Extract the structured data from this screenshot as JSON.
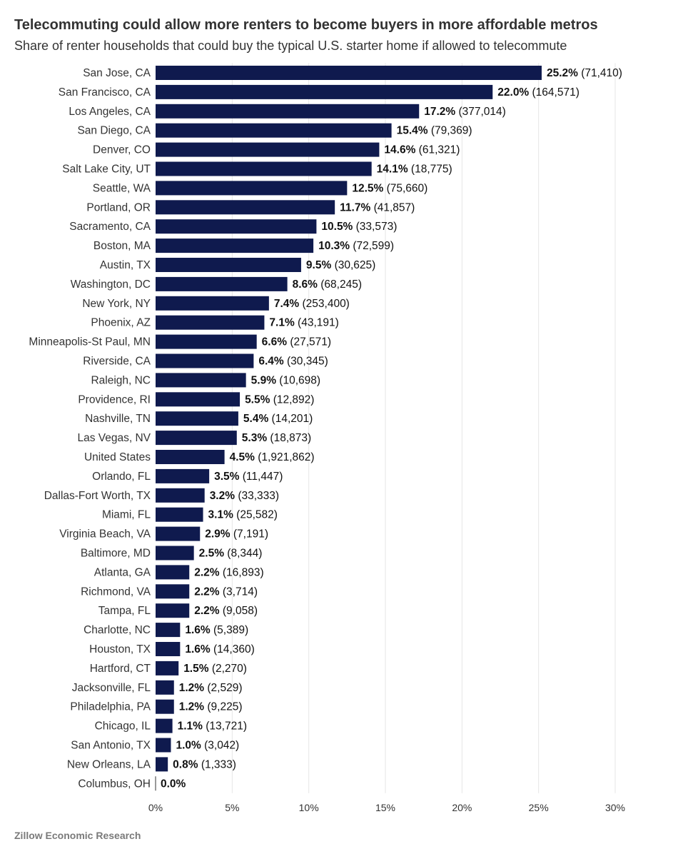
{
  "title": "Telecommuting could allow more renters to become buyers in more affordable metros",
  "subtitle": "Share of renter households that could buy the typical U.S. starter home if allowed to telecommute",
  "source": "Zillow Economic Research",
  "colors": {
    "bar": "#0f1a4e",
    "grid": "#e6e6e6",
    "text": "#333333",
    "source": "#7a7a7a"
  },
  "chart_data": {
    "type": "bar",
    "orientation": "horizontal",
    "title": "Telecommuting could allow more renters to become buyers in more affordable metros",
    "subtitle": "Share of renter households that could buy the typical U.S. starter home if allowed to telecommute",
    "xlabel": "",
    "ylabel": "",
    "xlim": [
      0,
      30
    ],
    "x_ticks": [
      "0%",
      "5%",
      "10%",
      "15%",
      "20%",
      "25%",
      "30%"
    ],
    "grid": true,
    "legend": "none",
    "categories": [
      "San Jose, CA",
      "San Francisco, CA",
      "Los Angeles, CA",
      "San Diego, CA",
      "Denver, CO",
      "Salt Lake City, UT",
      "Seattle, WA",
      "Portland, OR",
      "Sacramento, CA",
      "Boston, MA",
      "Austin, TX",
      "Washington, DC",
      "New York, NY",
      "Phoenix, AZ",
      "Minneapolis-St Paul, MN",
      "Riverside, CA",
      "Raleigh, NC",
      "Providence, RI",
      "Nashville, TN",
      "Las Vegas, NV",
      "United States",
      "Orlando, FL",
      "Dallas-Fort Worth, TX",
      "Miami, FL",
      "Virginia Beach, VA",
      "Baltimore, MD",
      "Atlanta, GA",
      "Richmond, VA",
      "Tampa, FL",
      "Charlotte, NC",
      "Houston, TX",
      "Hartford, CT",
      "Jacksonville, FL",
      "Philadelphia, PA",
      "Chicago, IL",
      "San Antonio, TX",
      "New Orleans, LA",
      "Columbus, OH"
    ],
    "values": [
      25.2,
      22.0,
      17.2,
      15.4,
      14.6,
      14.1,
      12.5,
      11.7,
      10.5,
      10.3,
      9.5,
      8.6,
      7.4,
      7.1,
      6.6,
      6.4,
      5.9,
      5.5,
      5.4,
      5.3,
      4.5,
      3.5,
      3.2,
      3.1,
      2.9,
      2.5,
      2.2,
      2.2,
      2.2,
      1.6,
      1.6,
      1.5,
      1.2,
      1.2,
      1.1,
      1.0,
      0.8,
      0.0
    ],
    "value_labels": [
      "25.2%",
      "22.0%",
      "17.2%",
      "15.4%",
      "14.6%",
      "14.1%",
      "12.5%",
      "11.7%",
      "10.5%",
      "10.3%",
      "9.5%",
      "8.6%",
      "7.4%",
      "7.1%",
      "6.6%",
      "6.4%",
      "5.9%",
      "5.5%",
      "5.4%",
      "5.3%",
      "4.5%",
      "3.5%",
      "3.2%",
      "3.1%",
      "2.9%",
      "2.5%",
      "2.2%",
      "2.2%",
      "2.2%",
      "1.6%",
      "1.6%",
      "1.5%",
      "1.2%",
      "1.2%",
      "1.1%",
      "1.0%",
      "0.8%",
      "0.0%"
    ],
    "counts": [
      "(71,410)",
      "(164,571)",
      "(377,014)",
      "(79,369)",
      "(61,321)",
      "(18,775)",
      "(75,660)",
      "(41,857)",
      "(33,573)",
      "(72,599)",
      "(30,625)",
      "(68,245)",
      "(253,400)",
      "(43,191)",
      "(27,571)",
      "(30,345)",
      "(10,698)",
      "(12,892)",
      "(14,201)",
      "(18,873)",
      "(1,921,862)",
      "(11,447)",
      "(33,333)",
      "(25,582)",
      "(7,191)",
      "(8,344)",
      "(16,893)",
      "(3,714)",
      "(9,058)",
      "(5,389)",
      "(14,360)",
      "(2,270)",
      "(2,529)",
      "(9,225)",
      "(13,721)",
      "(3,042)",
      "(1,333)",
      ""
    ]
  }
}
